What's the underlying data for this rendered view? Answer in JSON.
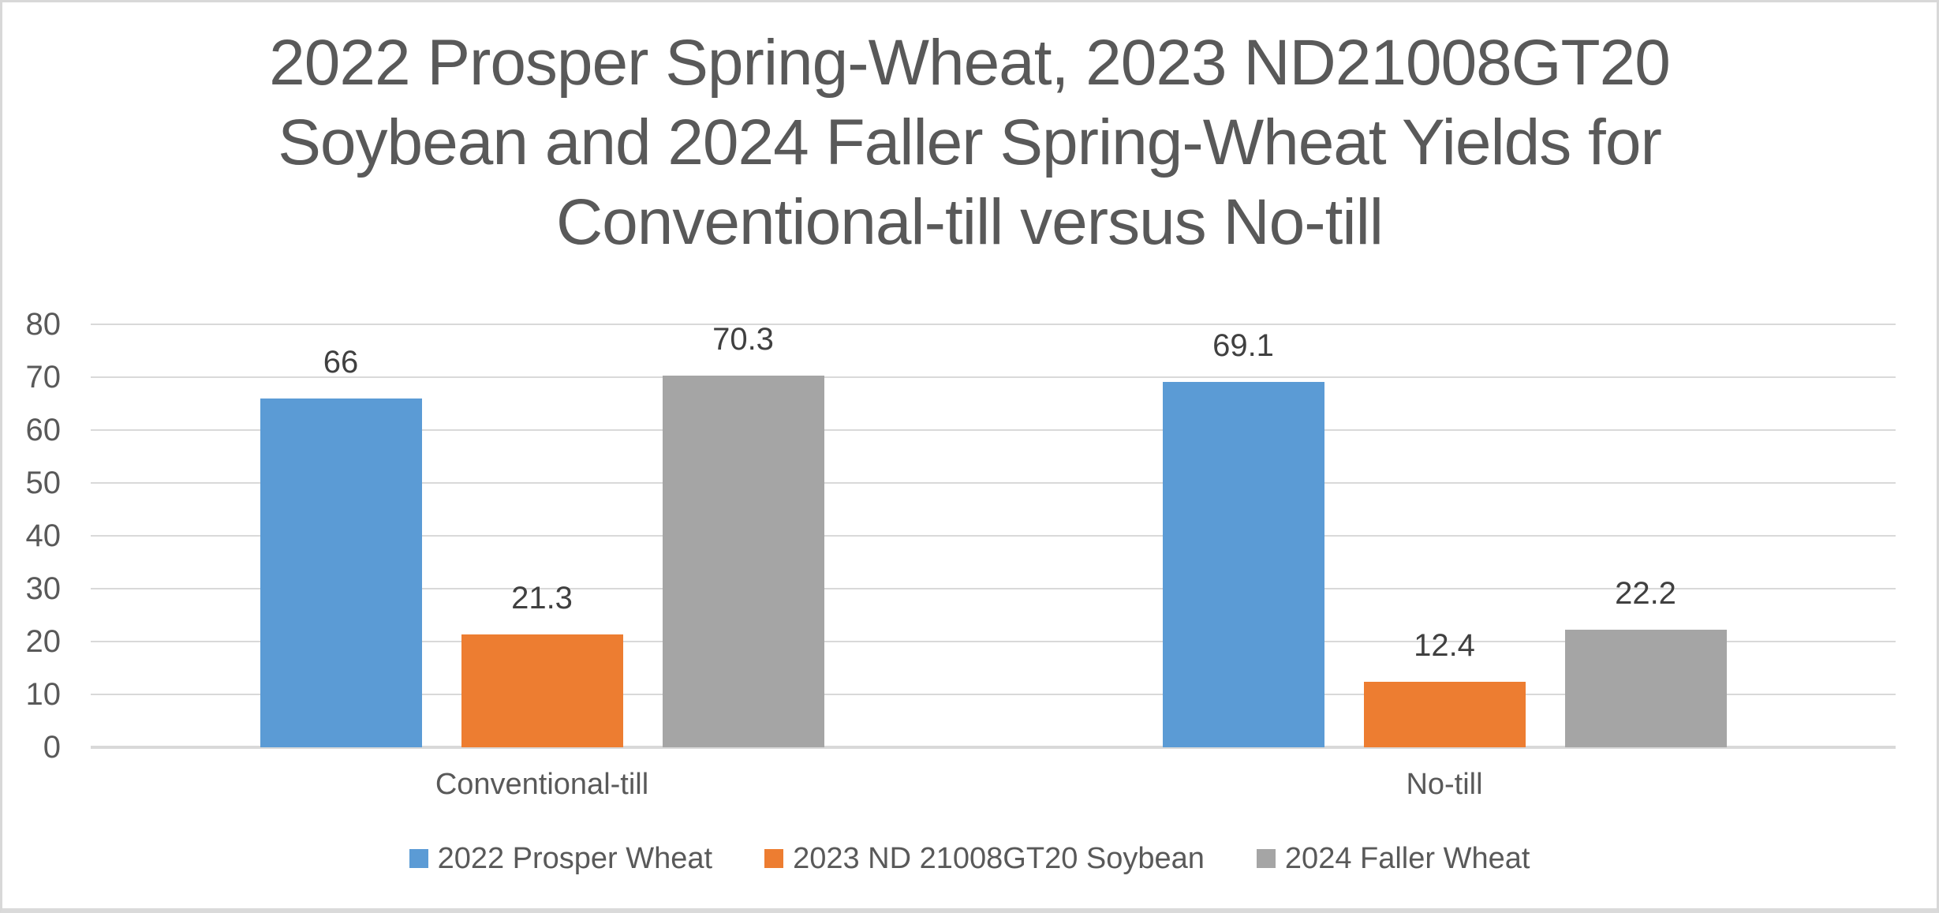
{
  "page": {
    "background": "#FFFFFF",
    "border_color": "#D8D8D8",
    "bottom_strip_color": "#DADADA"
  },
  "chart_data": {
    "type": "bar",
    "title": "2022 Prosper Spring-Wheat, 2023 ND21008GT20 Soybean and 2024 Faller Spring-Wheat Yields for Conventional-till versus No-till",
    "title_lines": [
      "2022 Prosper Spring-Wheat, 2023 ND21008GT20",
      "Soybean and 2024 Faller Spring-Wheat Yields for",
      "Conventional-till versus No-till"
    ],
    "categories": [
      "Conventional-till",
      "No-till"
    ],
    "series": [
      {
        "name": "2022 Prosper Wheat",
        "color": "#5B9BD5",
        "values": [
          66,
          69.1
        ],
        "labels": [
          "66",
          "69.1"
        ]
      },
      {
        "name": "2023 ND 21008GT20 Soybean",
        "color": "#ED7D31",
        "values": [
          21.3,
          12.4
        ],
        "labels": [
          "21.3",
          "12.4"
        ]
      },
      {
        "name": "2024 Faller Wheat",
        "color": "#A5A5A5",
        "values": [
          70.3,
          22.2
        ],
        "labels": [
          "70.3",
          "22.2"
        ]
      }
    ],
    "ylim": [
      0,
      80
    ],
    "yticks": [
      80,
      70,
      60,
      50,
      40,
      30,
      20,
      10,
      0
    ],
    "grid": true,
    "gridline_color": "#D9D9D9",
    "axis_line_color": "#D9D9D9",
    "title_color": "#595959",
    "tick_label_color": "#595959",
    "category_label_color": "#595959",
    "data_label_color": "#404040",
    "legend_text_color": "#595959",
    "legend_position": "bottom"
  }
}
